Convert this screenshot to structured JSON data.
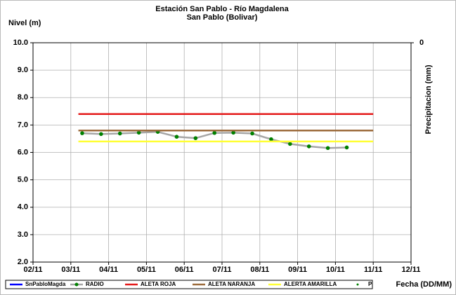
{
  "chart_data": {
    "type": "line",
    "title": "Estación San Pablo - Río Magdalena",
    "subtitle": "San Pablo (Bolivar)",
    "y_label": "Nivel (m)",
    "y2_label": "Precipitacion (mm)",
    "x_label": "Fecha (DD/MM)",
    "xlim": [
      2,
      12
    ],
    "xticks": [
      {
        "value": 2,
        "label": "02/11"
      },
      {
        "value": 3,
        "label": "03/11"
      },
      {
        "value": 4,
        "label": "04/11"
      },
      {
        "value": 5,
        "label": "05/11"
      },
      {
        "value": 6,
        "label": "06/11"
      },
      {
        "value": 7,
        "label": "07/11"
      },
      {
        "value": 8,
        "label": "08/11"
      },
      {
        "value": 9,
        "label": "09/11"
      },
      {
        "value": 10,
        "label": "10/11"
      },
      {
        "value": 11,
        "label": "11/11"
      },
      {
        "value": 12,
        "label": "12/11"
      }
    ],
    "ylim": [
      2,
      10
    ],
    "yticks": [
      {
        "value": 2,
        "label": "2.0"
      },
      {
        "value": 3,
        "label": "3.0"
      },
      {
        "value": 4,
        "label": "4.0"
      },
      {
        "value": 5,
        "label": "5.0"
      },
      {
        "value": 6,
        "label": "6.0"
      },
      {
        "value": 7,
        "label": "7.0"
      },
      {
        "value": 8,
        "label": "8.0"
      },
      {
        "value": 9,
        "label": "9.0"
      },
      {
        "value": 10,
        "label": "10.0"
      }
    ],
    "y2lim": [
      1,
      0
    ],
    "y2ticks": [
      0
    ],
    "grid": true,
    "legend": "bottom",
    "series": [
      {
        "name": "SnPabloMagda",
        "color": "#0000ff",
        "x": [],
        "values": []
      },
      {
        "name": "RADIO",
        "color": "#a6a6a6",
        "marker_color": "#008000",
        "x": [
          3.3,
          3.8,
          4.3,
          4.8,
          5.3,
          5.8,
          6.3,
          6.8,
          7.3,
          7.8,
          8.3,
          8.8,
          9.3,
          9.8,
          10.3
        ],
        "values": [
          6.7,
          6.67,
          6.69,
          6.72,
          6.75,
          6.57,
          6.52,
          6.71,
          6.72,
          6.69,
          6.48,
          6.31,
          6.22,
          6.16,
          6.18
        ]
      },
      {
        "name": "ALETA ROJA",
        "color": "#e41a1a",
        "x": [
          3.2,
          11
        ],
        "values": [
          7.4,
          7.4
        ]
      },
      {
        "name": "ALETA NARANJA",
        "color": "#9c6b3c",
        "x": [
          3.2,
          11
        ],
        "values": [
          6.8,
          6.8
        ]
      },
      {
        "name": "ALERTA AMARILLA",
        "color": "#ffff33",
        "x": [
          3.2,
          11
        ],
        "values": [
          6.4,
          6.4
        ]
      },
      {
        "name": "P",
        "color": "#008000",
        "x": [],
        "values": [],
        "axis": "y2"
      }
    ]
  }
}
